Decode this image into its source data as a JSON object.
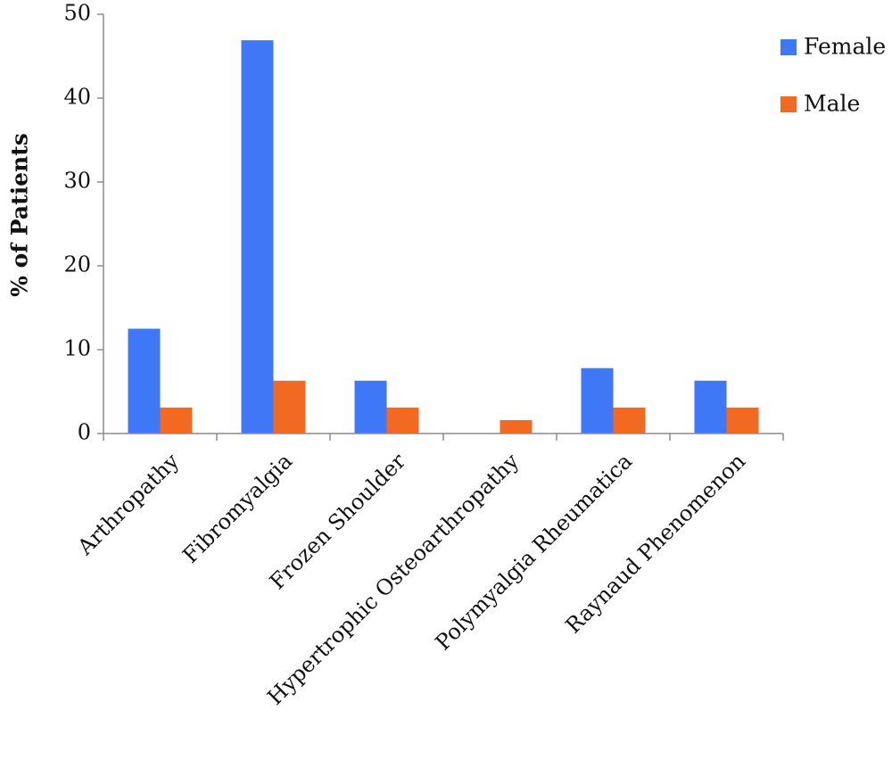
{
  "chart_data": {
    "type": "bar",
    "categories": [
      "Arthropathy",
      "Fibromyalgia",
      "Frozen Shoulder",
      "Hypertrophic Osteoarthropathy",
      "Polymyalgia Rheumatica",
      "Raynaud Phenomenon"
    ],
    "series": [
      {
        "name": "Female",
        "color": "#3e78f6",
        "values": [
          12.5,
          46.9,
          6.3,
          0,
          7.8,
          6.3
        ]
      },
      {
        "name": "Male",
        "color": "#f26a21",
        "values": [
          3.1,
          6.3,
          3.1,
          1.6,
          3.1,
          3.1
        ]
      }
    ],
    "ylabel": "% of Patients",
    "xlabel": "",
    "ylim": [
      0,
      50
    ],
    "yticks": [
      0,
      10,
      20,
      30,
      40,
      50
    ],
    "grid": false,
    "legend_position": "top-right"
  }
}
